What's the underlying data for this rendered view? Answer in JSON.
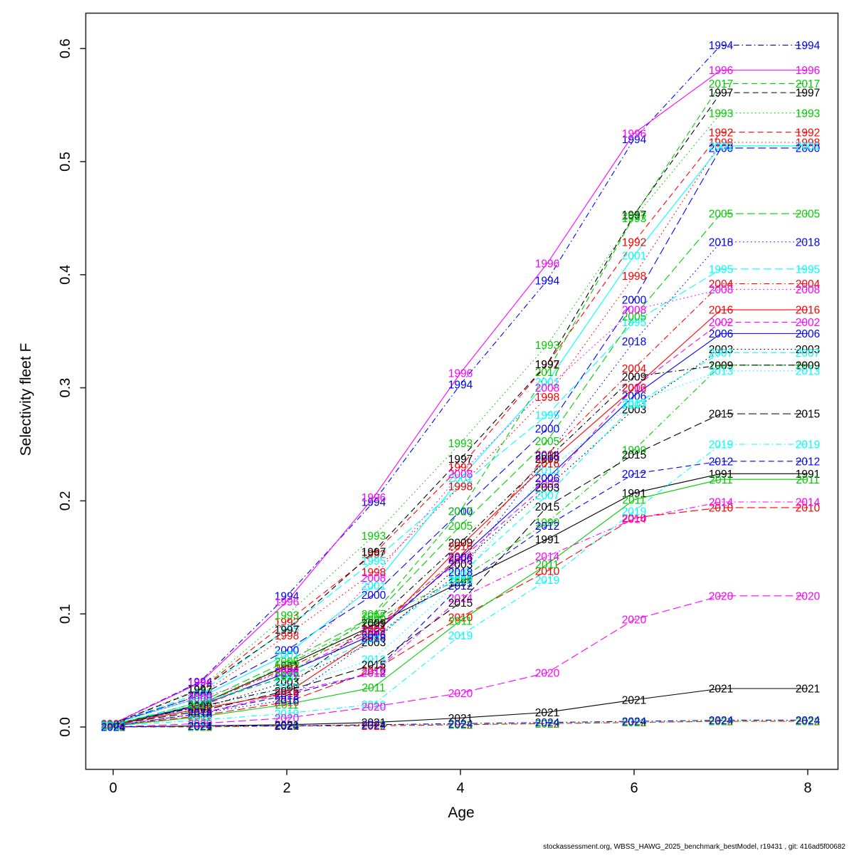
{
  "chart_data": {
    "type": "line",
    "title": "",
    "xlabel": "Age",
    "ylabel": "Selectivity fleet F",
    "x": [
      0,
      1,
      2,
      3,
      4,
      5,
      6,
      7,
      8
    ],
    "x_tick_labels": [
      "0",
      "2",
      "4",
      "6",
      "8"
    ],
    "x_tick_values": [
      0,
      2,
      4,
      6,
      8
    ],
    "y_tick_labels": [
      "0.0",
      "0.1",
      "0.2",
      "0.3",
      "0.4",
      "0.5",
      "0.6"
    ],
    "y_tick_values": [
      0.0,
      0.1,
      0.2,
      0.3,
      0.4,
      0.5,
      0.6
    ],
    "xlim": [
      -0.3,
      8.3
    ],
    "ylim": [
      -0.037,
      0.632
    ],
    "grid": false,
    "legend": "labels at every data point, colored as line",
    "palette": {
      "black": "#000000",
      "red": "#FF0000",
      "green": "#00CD00",
      "blue": "#0000FF",
      "cyan": "#00FFFF",
      "magenta": "#FF00FF"
    },
    "series": [
      {
        "name": "1991",
        "color": "#000000",
        "dash": "solid",
        "values": [
          0.002,
          0.02,
          0.054,
          0.09,
          0.128,
          0.166,
          0.207,
          0.224,
          0.224
        ]
      },
      {
        "name": "1992",
        "color": "#FF0000",
        "dash": "dashed",
        "values": [
          0.003,
          0.033,
          0.093,
          0.153,
          0.23,
          0.321,
          0.429,
          0.526,
          0.526
        ]
      },
      {
        "name": "1993",
        "color": "#00CD00",
        "dash": "dotted",
        "values": [
          0.003,
          0.034,
          0.099,
          0.169,
          0.251,
          0.338,
          0.45,
          0.543,
          0.543
        ]
      },
      {
        "name": "1994",
        "color": "#0000FF",
        "dash": "dashdot",
        "values": [
          0.003,
          0.04,
          0.116,
          0.199,
          0.303,
          0.395,
          0.52,
          0.603,
          0.603
        ]
      },
      {
        "name": "1995",
        "color": "#00FFFF",
        "dash": "longdash",
        "values": [
          0.003,
          0.03,
          0.087,
          0.147,
          0.213,
          0.276,
          0.358,
          0.405,
          0.405
        ]
      },
      {
        "name": "1996",
        "color": "#FF00FF",
        "dash": "solid",
        "values": [
          0.003,
          0.039,
          0.111,
          0.203,
          0.313,
          0.41,
          0.525,
          0.581,
          0.581
        ]
      },
      {
        "name": "1997",
        "color": "#000000",
        "dash": "dashed",
        "values": [
          0.003,
          0.033,
          0.086,
          0.155,
          0.237,
          0.321,
          0.453,
          0.561,
          0.561
        ]
      },
      {
        "name": "1998",
        "color": "#FF0000",
        "dash": "dotted",
        "values": [
          0.003,
          0.028,
          0.081,
          0.137,
          0.213,
          0.292,
          0.399,
          0.517,
          0.517
        ]
      },
      {
        "name": "1999",
        "color": "#00CD00",
        "dash": "dashdot",
        "values": [
          0.002,
          0.02,
          0.055,
          0.095,
          0.131,
          0.181,
          0.245,
          0.32,
          0.32
        ]
      },
      {
        "name": "2000",
        "color": "#0000FF",
        "dash": "longdash",
        "values": [
          0.003,
          0.028,
          0.068,
          0.117,
          0.191,
          0.264,
          0.378,
          0.512,
          0.512
        ]
      },
      {
        "name": "2001",
        "color": "#00FFFF",
        "dash": "solid",
        "values": [
          0.003,
          0.026,
          0.064,
          0.125,
          0.22,
          0.305,
          0.417,
          0.514,
          0.514
        ]
      },
      {
        "name": "2002",
        "color": "#FF00FF",
        "dash": "dashed",
        "values": [
          0.002,
          0.018,
          0.048,
          0.085,
          0.148,
          0.215,
          0.3,
          0.358,
          0.358
        ]
      },
      {
        "name": "2003",
        "color": "#000000",
        "dash": "dotted",
        "values": [
          0.002,
          0.016,
          0.04,
          0.075,
          0.144,
          0.212,
          0.281,
          0.334,
          0.334
        ]
      },
      {
        "name": "2004",
        "color": "#FF0000",
        "dash": "dashdot",
        "values": [
          0.002,
          0.02,
          0.052,
          0.087,
          0.151,
          0.241,
          0.317,
          0.392,
          0.392
        ]
      },
      {
        "name": "2005",
        "color": "#00CD00",
        "dash": "longdash",
        "values": [
          0.002,
          0.022,
          0.058,
          0.098,
          0.178,
          0.253,
          0.363,
          0.454,
          0.454
        ]
      },
      {
        "name": "2006",
        "color": "#0000FF",
        "dash": "solid",
        "values": [
          0.002,
          0.019,
          0.048,
          0.082,
          0.15,
          0.22,
          0.293,
          0.348,
          0.348
        ]
      },
      {
        "name": "2007",
        "color": "#00FFFF",
        "dash": "dashed",
        "values": [
          0.002,
          0.022,
          0.044,
          0.078,
          0.135,
          0.205,
          0.285,
          0.331,
          0.331
        ]
      },
      {
        "name": "2008",
        "color": "#FF00FF",
        "dash": "dotted",
        "values": [
          0.003,
          0.026,
          0.049,
          0.132,
          0.224,
          0.3,
          0.369,
          0.387,
          0.387
        ]
      },
      {
        "name": "2009",
        "color": "#000000",
        "dash": "dashdot",
        "values": [
          0.002,
          0.018,
          0.035,
          0.092,
          0.163,
          0.237,
          0.31,
          0.32,
          0.32
        ]
      },
      {
        "name": "2010",
        "color": "#FF0000",
        "dash": "longdash",
        "values": [
          0.001,
          0.01,
          0.022,
          0.05,
          0.097,
          0.138,
          0.185,
          0.194,
          0.194
        ]
      },
      {
        "name": "2011",
        "color": "#00CD00",
        "dash": "solid",
        "values": [
          0.001,
          0.009,
          0.02,
          0.035,
          0.094,
          0.144,
          0.201,
          0.219,
          0.219
        ]
      },
      {
        "name": "2012",
        "color": "#0000FF",
        "dash": "dashed",
        "values": [
          0.001,
          0.012,
          0.028,
          0.048,
          0.125,
          0.178,
          0.224,
          0.235,
          0.235
        ]
      },
      {
        "name": "2013",
        "color": "#00FFFF",
        "dash": "dotted",
        "values": [
          0.002,
          0.015,
          0.035,
          0.06,
          0.13,
          0.227,
          0.287,
          0.315,
          0.315
        ]
      },
      {
        "name": "2014",
        "color": "#FF00FF",
        "dash": "dashdot",
        "values": [
          0.001,
          0.012,
          0.03,
          0.048,
          0.114,
          0.151,
          0.184,
          0.199,
          0.199
        ]
      },
      {
        "name": "2015",
        "color": "#000000",
        "dash": "longdash",
        "values": [
          0.002,
          0.014,
          0.032,
          0.055,
          0.11,
          0.195,
          0.241,
          0.277,
          0.277
        ]
      },
      {
        "name": "2016",
        "color": "#FF0000",
        "dash": "solid",
        "values": [
          0.002,
          0.016,
          0.03,
          0.081,
          0.16,
          0.233,
          0.3,
          0.369,
          0.369
        ]
      },
      {
        "name": "2017",
        "color": "#00CD00",
        "dash": "dashed",
        "values": [
          0.002,
          0.02,
          0.045,
          0.1,
          0.191,
          0.314,
          0.452,
          0.569,
          0.569
        ]
      },
      {
        "name": "2018",
        "color": "#0000FF",
        "dash": "dotted",
        "values": [
          0.001,
          0.012,
          0.024,
          0.079,
          0.137,
          0.24,
          0.341,
          0.429,
          0.429
        ]
      },
      {
        "name": "2019",
        "color": "#00FFFF",
        "dash": "dashdot",
        "values": [
          0.001,
          0.006,
          0.012,
          0.02,
          0.081,
          0.13,
          0.191,
          0.25,
          0.25
        ]
      },
      {
        "name": "2020",
        "color": "#FF00FF",
        "dash": "longdash",
        "values": [
          0.0,
          0.003,
          0.008,
          0.018,
          0.03,
          0.048,
          0.095,
          0.116,
          0.116
        ]
      },
      {
        "name": "2021",
        "color": "#000000",
        "dash": "solid",
        "values": [
          0.0,
          0.001,
          0.002,
          0.004,
          0.008,
          0.013,
          0.024,
          0.034,
          0.034
        ]
      },
      {
        "name": "2022",
        "color": "#FF0000",
        "dash": "dashed",
        "values": [
          0.0,
          0.0,
          0.001,
          0.001,
          0.002,
          0.003,
          0.004,
          0.005,
          0.005
        ]
      },
      {
        "name": "2023",
        "color": "#00CD00",
        "dash": "dotted",
        "values": [
          0.0,
          0.0,
          0.001,
          0.002,
          0.002,
          0.003,
          0.004,
          0.005,
          0.005
        ]
      },
      {
        "name": "2024",
        "color": "#0000FF",
        "dash": "dashdot",
        "values": [
          0.0,
          0.001,
          0.001,
          0.002,
          0.003,
          0.004,
          0.005,
          0.006,
          0.006
        ]
      }
    ]
  },
  "footer": {
    "text": "stockassessment.org, WBSS_HAWG_2025_benchmark_bestModel, r19431 , git: 416ad5f00682"
  }
}
